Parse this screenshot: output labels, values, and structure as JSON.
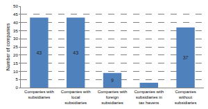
{
  "chart_data": {
    "type": "bar",
    "y_label": "Number of companies",
    "categories": [
      "Companies with subsidiaries",
      "Companies with local subsidiaries",
      "Companies with foreign subsidiaries",
      "Companies with subsidiaries in tax havens",
      "Companies without subsidiaries"
    ],
    "values": [
      43,
      43,
      9,
      3,
      37
    ],
    "color": "#4f81bd",
    "ylim": [
      0,
      50
    ],
    "yticks": [
      0,
      5,
      10,
      15,
      20,
      25,
      30,
      35,
      40,
      45,
      50
    ],
    "grid": true,
    "data_labels": true
  }
}
